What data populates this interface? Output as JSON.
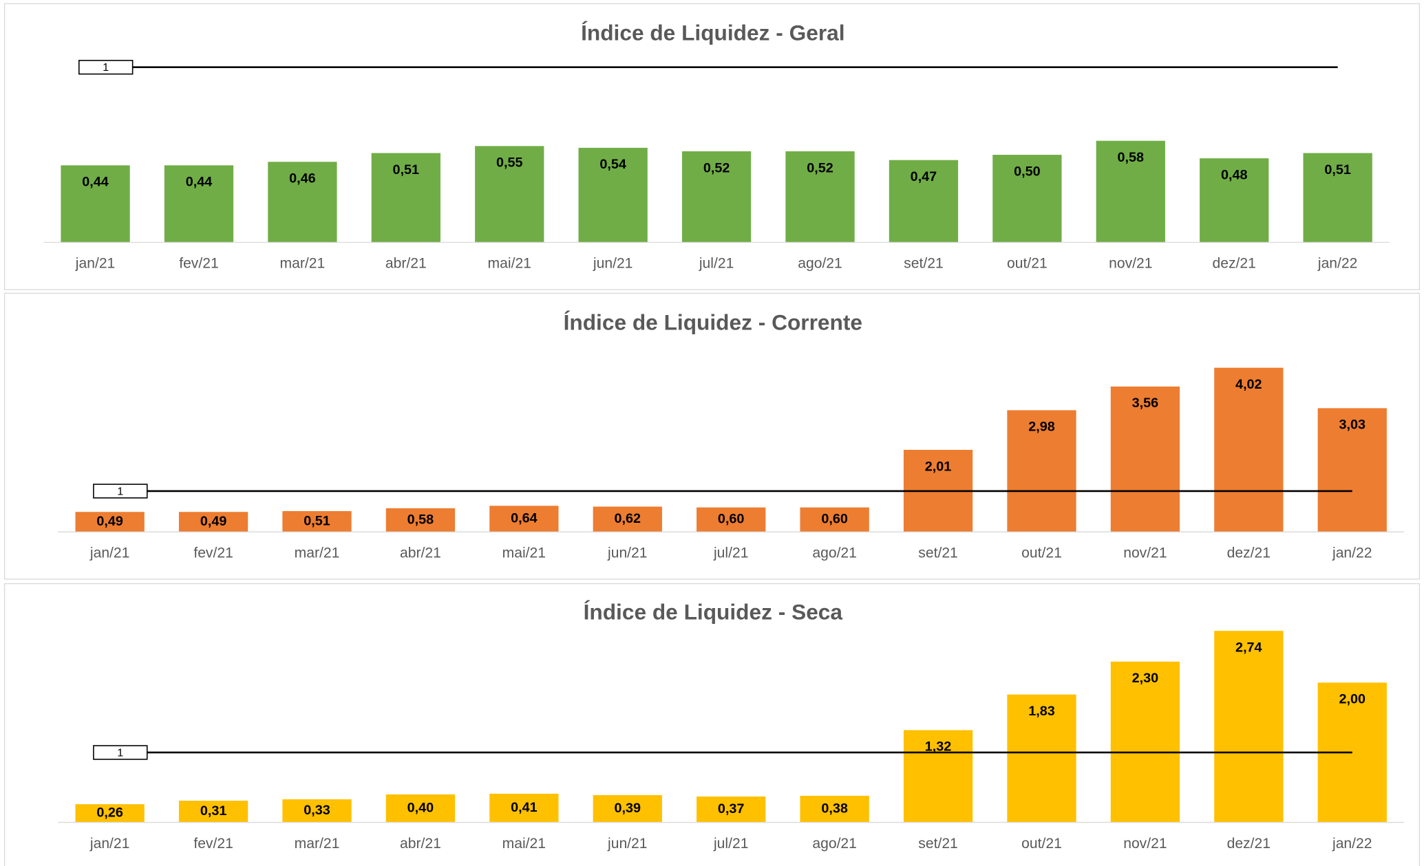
{
  "chart_data": [
    {
      "type": "bar",
      "title": "Índice de Liquidez - Geral",
      "categories": [
        "jan/21",
        "fev/21",
        "mar/21",
        "abr/21",
        "mai/21",
        "jun/21",
        "jul/21",
        "ago/21",
        "set/21",
        "out/21",
        "nov/21",
        "dez/21",
        "jan/22"
      ],
      "values": [
        0.44,
        0.44,
        0.46,
        0.51,
        0.55,
        0.54,
        0.52,
        0.52,
        0.47,
        0.5,
        0.58,
        0.48,
        0.51
      ],
      "value_labels": [
        "0,44",
        "0,44",
        "0,46",
        "0,51",
        "0,55",
        "0,54",
        "0,52",
        "0,52",
        "0,47",
        "0,50",
        "0,58",
        "0,48",
        "0,51"
      ],
      "color": "#70ad47",
      "ylim": [
        0,
        1.2
      ],
      "reference_line": 1
    },
    {
      "type": "bar",
      "title": "Índice de Liquidez - Corrente",
      "categories": [
        "jan/21",
        "fev/21",
        "mar/21",
        "abr/21",
        "mai/21",
        "jun/21",
        "jul/21",
        "ago/21",
        "set/21",
        "out/21",
        "nov/21",
        "dez/21",
        "jan/22"
      ],
      "values": [
        0.49,
        0.49,
        0.51,
        0.58,
        0.64,
        0.62,
        0.6,
        0.6,
        2.01,
        2.98,
        3.56,
        4.02,
        3.03
      ],
      "value_labels": [
        "0,49",
        "0,49",
        "0,51",
        "0,58",
        "0,64",
        "0,62",
        "0,60",
        "0,60",
        "2,01",
        "2,98",
        "3,56",
        "4,02",
        "3,03"
      ],
      "color": "#ed7d31",
      "ylim": [
        0,
        4.5
      ],
      "reference_line": 1
    },
    {
      "type": "bar",
      "title": "Índice de Liquidez - Seca",
      "categories": [
        "jan/21",
        "fev/21",
        "mar/21",
        "abr/21",
        "mai/21",
        "jun/21",
        "jul/21",
        "ago/21",
        "set/21",
        "out/21",
        "nov/21",
        "dez/21",
        "jan/22"
      ],
      "values": [
        0.26,
        0.31,
        0.33,
        0.4,
        0.41,
        0.39,
        0.37,
        0.38,
        1.32,
        1.83,
        2.3,
        2.74,
        2.0
      ],
      "value_labels": [
        "0,26",
        "0,31",
        "0,33",
        "0,40",
        "0,41",
        "0,39",
        "0,37",
        "0,38",
        "1,32",
        "1,83",
        "2,30",
        "2,74",
        "2,00"
      ],
      "color": "#ffc000",
      "ylim": [
        0,
        3
      ],
      "reference_line": 1
    }
  ]
}
